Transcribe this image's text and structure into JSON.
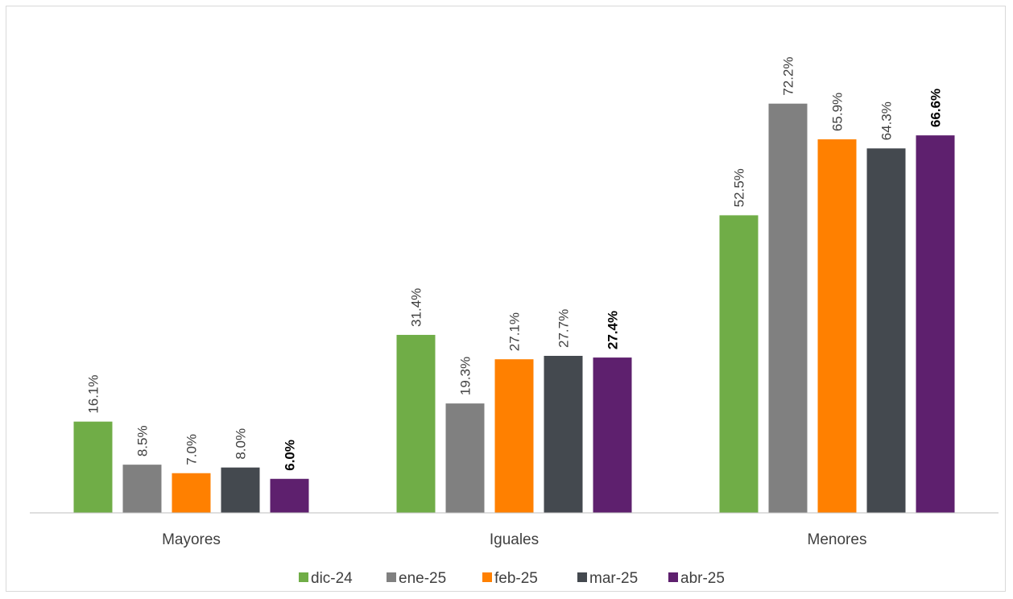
{
  "chart_data": {
    "type": "bar",
    "categories": [
      "Mayores",
      "Iguales",
      "Menores"
    ],
    "series": [
      {
        "name": "dic-24",
        "color": "#70ad47",
        "values": [
          16.1,
          31.4,
          52.5
        ],
        "labels": [
          "16.1%",
          "31.4%",
          "52.5%"
        ],
        "bold": false
      },
      {
        "name": "ene-25",
        "color": "#808080",
        "values": [
          8.5,
          19.3,
          72.2
        ],
        "labels": [
          "8.5%",
          "19.3%",
          "72.2%"
        ],
        "bold": false
      },
      {
        "name": "feb-25",
        "color": "#ff8000",
        "values": [
          7.0,
          27.1,
          65.9
        ],
        "labels": [
          "7.0%",
          "27.1%",
          "65.9%"
        ],
        "bold": false
      },
      {
        "name": "mar-25",
        "color": "#44494f",
        "values": [
          8.0,
          27.7,
          64.3
        ],
        "labels": [
          "8.0%",
          "27.7%",
          "64.3%"
        ],
        "bold": false
      },
      {
        "name": "abr-25",
        "color": "#5e206e",
        "values": [
          6.0,
          27.4,
          66.6
        ],
        "labels": [
          "6.0%",
          "27.4%",
          "66.6%"
        ],
        "bold": true
      }
    ],
    "ylim": [
      0,
      80
    ],
    "grid": false,
    "legend": "bottom",
    "data_label_orientation": "vertical"
  }
}
